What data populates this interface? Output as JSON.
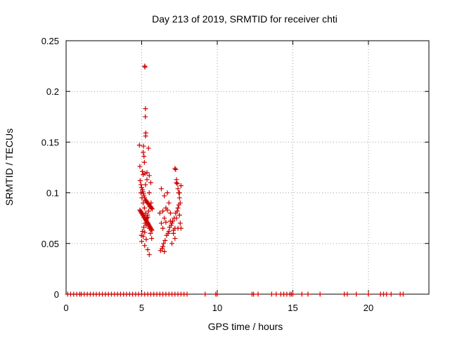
{
  "chart_data": {
    "type": "scatter",
    "title": "Day 213 of 2019, SRMTID for receiver chti",
    "xlabel": "GPS time / hours",
    "ylabel": "SRMTID / TECUs",
    "xlim": [
      0,
      24
    ],
    "ylim": [
      0,
      0.25
    ],
    "xticks": [
      0,
      5,
      10,
      15,
      20
    ],
    "xtick_labels": [
      "0",
      "5",
      "10",
      "15",
      "20"
    ],
    "yticks": [
      0,
      0.05,
      0.1,
      0.15,
      0.2,
      0.25
    ],
    "ytick_labels": [
      "0",
      "0.05",
      "0.1",
      "0.15",
      "0.2",
      "0.25"
    ],
    "grid": true,
    "marker": "+",
    "color": "#cc0000",
    "series": [
      {
        "x": [
          5.2,
          5.22,
          5.25,
          5.24,
          5.27,
          5.26,
          5.12,
          5.15,
          5.18,
          5.1,
          4.85,
          4.88,
          5.05,
          5.1,
          5.22,
          5.35,
          5.45,
          5.5,
          4.9,
          4.95,
          5.0,
          5.05,
          5.08,
          5.12,
          5.15,
          5.2,
          5.25,
          5.3,
          5.35,
          5.4,
          5.45,
          5.5,
          5.55,
          5.6,
          5.65,
          5.7,
          4.88,
          4.92,
          4.96,
          5.0,
          5.04,
          5.08,
          5.12,
          5.16,
          5.2,
          5.24,
          5.28,
          5.32,
          5.36,
          5.4,
          5.44,
          5.48,
          5.52,
          5.56,
          5.6,
          5.64,
          5.68,
          4.95,
          5.02,
          5.1,
          5.18,
          5.26,
          5.34,
          5.42,
          5.5,
          5.58,
          5.66,
          4.98,
          5.06,
          5.14,
          5.22,
          5.3,
          5.38,
          5.46,
          5.54,
          5.62,
          5.0,
          5.1,
          5.2,
          5.3,
          5.4,
          5.5,
          5.6,
          5.2,
          5.3,
          5.4,
          5.5,
          5.25,
          5.35,
          6.2,
          6.3,
          6.4,
          6.5,
          6.6,
          6.7,
          6.8,
          6.9,
          7.0,
          7.1,
          7.2,
          7.3,
          7.4,
          7.5,
          7.6,
          6.25,
          6.45,
          6.65,
          6.85,
          7.05,
          7.25,
          7.45,
          6.35,
          6.55,
          6.75,
          6.95,
          7.15,
          7.35,
          7.55,
          6.4,
          6.6,
          6.8,
          7.0,
          7.2,
          7.4,
          6.3,
          6.5,
          6.7,
          6.9,
          7.1,
          7.3,
          7.5,
          7.2,
          7.25,
          7.3,
          7.35,
          7.4,
          7.45,
          7.5,
          7.55,
          7.6,
          6.4,
          6.5
        ],
        "y": [
          0.225,
          0.224,
          0.183,
          0.175,
          0.159,
          0.156,
          0.146,
          0.136,
          0.13,
          0.14,
          0.147,
          0.126,
          0.121,
          0.118,
          0.119,
          0.12,
          0.144,
          0.117,
          0.112,
          0.108,
          0.105,
          0.103,
          0.101,
          0.099,
          0.097,
          0.095,
          0.093,
          0.092,
          0.091,
          0.09,
          0.089,
          0.088,
          0.087,
          0.086,
          0.085,
          0.084,
          0.083,
          0.082,
          0.081,
          0.08,
          0.079,
          0.078,
          0.077,
          0.076,
          0.075,
          0.074,
          0.073,
          0.072,
          0.071,
          0.07,
          0.069,
          0.068,
          0.067,
          0.066,
          0.065,
          0.064,
          0.063,
          0.1,
          0.095,
          0.09,
          0.085,
          0.08,
          0.075,
          0.07,
          0.065,
          0.06,
          0.055,
          0.058,
          0.062,
          0.066,
          0.07,
          0.074,
          0.078,
          0.082,
          0.086,
          0.09,
          0.052,
          0.057,
          0.061,
          0.068,
          0.076,
          0.1,
          0.11,
          0.048,
          0.054,
          0.044,
          0.039,
          0.108,
          0.113,
          0.08,
          0.07,
          0.065,
          0.075,
          0.085,
          0.1,
          0.09,
          0.08,
          0.07,
          0.06,
          0.065,
          0.075,
          0.085,
          0.1,
          0.107,
          0.043,
          0.05,
          0.058,
          0.066,
          0.072,
          0.08,
          0.088,
          0.045,
          0.053,
          0.06,
          0.068,
          0.075,
          0.082,
          0.09,
          0.082,
          0.071,
          0.062,
          0.05,
          0.055,
          0.065,
          0.104,
          0.097,
          0.083,
          0.072,
          0.063,
          0.11,
          0.078,
          0.124,
          0.123,
          0.113,
          0.109,
          0.104,
          0.1,
          0.095,
          0.07,
          0.065,
          0.047,
          0.042
        ]
      },
      {
        "x": [
          0.1,
          0.3,
          0.5,
          0.7,
          0.9,
          1.0,
          1.2,
          1.4,
          1.6,
          1.8,
          2.0,
          2.2,
          2.4,
          2.6,
          2.8,
          3.0,
          3.2,
          3.4,
          3.6,
          3.8,
          4.0,
          4.2,
          4.4,
          4.6,
          4.8,
          5.0,
          5.2,
          5.4,
          5.6,
          5.8,
          6.0,
          6.2,
          6.4,
          6.6,
          6.8,
          7.0,
          7.2,
          7.4,
          7.6,
          7.8,
          8.0,
          9.2,
          9.9,
          10.0,
          12.3,
          12.4,
          12.7,
          13.6,
          13.9,
          14.2,
          14.4,
          14.6,
          14.8,
          14.9,
          15.0,
          15.6,
          16.0,
          16.8,
          18.4,
          18.6,
          19.2,
          20.0,
          20.8,
          21.0,
          21.2,
          21.5,
          22.1,
          22.3
        ],
        "y": [
          0,
          0,
          0,
          0,
          0,
          0,
          0,
          0,
          0,
          0,
          0,
          0,
          0,
          0,
          0,
          0,
          0,
          0,
          0,
          0,
          0,
          0,
          0,
          0,
          0,
          0,
          0,
          0,
          0,
          0,
          0,
          0,
          0,
          0,
          0,
          0,
          0,
          0,
          0,
          0,
          0,
          0,
          0,
          0,
          0,
          0,
          0,
          0,
          0,
          0,
          0,
          0,
          0,
          0,
          0,
          0,
          0,
          0,
          0,
          0,
          0,
          0,
          0,
          0,
          0,
          0,
          0,
          0
        ]
      }
    ]
  }
}
